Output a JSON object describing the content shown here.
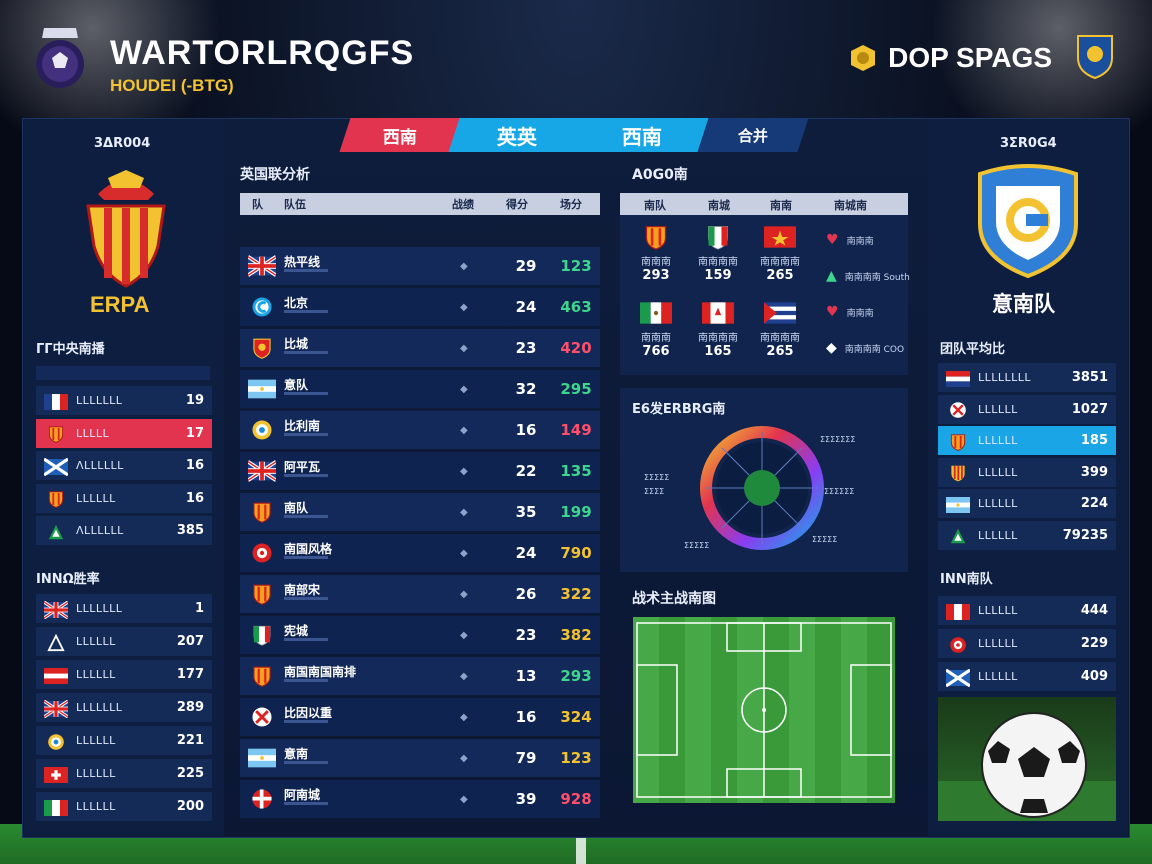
{
  "header": {
    "title": "WARTORLRQGFS",
    "subtitle": "HOUDEI (-BTG)",
    "right_label": "DOP SPAGS"
  },
  "tabs": [
    {
      "label": "西南"
    },
    {
      "label_a": "英英",
      "label_b": "西南"
    },
    {
      "label": "合并"
    }
  ],
  "left_panel": {
    "code": "3ΔR004",
    "team_name": "ERPA",
    "section1_title": "ΓΓ中央南播",
    "section1_rows": [
      {
        "name": "LLLLLLL",
        "val": "19",
        "flag": "flag-france"
      },
      {
        "name": "LLLLL",
        "val": "17",
        "flag": "flag-shield-orange",
        "highlight": "red"
      },
      {
        "name": "ΛLLLLLL",
        "val": "16",
        "flag": "flag-scotland"
      },
      {
        "name": "LLLLLL",
        "val": "16",
        "flag": "flag-shield-orange"
      },
      {
        "name": "ΛLLLLLL",
        "val": "385",
        "flag": "flag-green-triangle"
      }
    ],
    "section2_title": "INNΩ胜率",
    "section2_rows": [
      {
        "name": "LLLLLLL",
        "val": "1",
        "flag": "flag-uk"
      },
      {
        "name": "LLLLLL",
        "val": "207",
        "flag": "flag-triangle-white"
      },
      {
        "name": "LLLLLL",
        "val": "177",
        "flag": "flag-austria"
      },
      {
        "name": "LLLLLLL",
        "val": "289",
        "flag": "flag-uk"
      },
      {
        "name": "LLLLLL",
        "val": "221",
        "flag": "flag-round-yellow"
      },
      {
        "name": "LLLLLL",
        "val": "225",
        "flag": "flag-swiss"
      },
      {
        "name": "LLLLLL",
        "val": "200",
        "flag": "flag-italy"
      }
    ]
  },
  "standings": {
    "title": "英国联分析",
    "headers": [
      "队",
      "队伍",
      "战绩",
      "得分",
      "场分"
    ],
    "rows": [
      {
        "team": "热平线",
        "num": "29",
        "score": "123",
        "score_color": "#3dd68c",
        "flag": "flag-uk"
      },
      {
        "team": "北京",
        "num": "24",
        "score": "463",
        "score_color": "#3dd68c",
        "flag": "flag-c-blue"
      },
      {
        "team": "比城",
        "num": "23",
        "score": "420",
        "score_color": "#ff4f6a",
        "flag": "flag-shield-red"
      },
      {
        "team": "意队",
        "num": "32",
        "score": "295",
        "score_color": "#3dd68c",
        "flag": "flag-argentina"
      },
      {
        "team": "比利南",
        "num": "16",
        "score": "149",
        "score_color": "#ff4f6a",
        "flag": "flag-round-yellow"
      },
      {
        "team": "阿平瓦",
        "num": "22",
        "score": "135",
        "score_color": "#3dd68c",
        "flag": "flag-uk"
      },
      {
        "team": "南队",
        "num": "35",
        "score": "199",
        "score_color": "#3dd68c",
        "flag": "flag-shield-orange"
      },
      {
        "team": "南国风格",
        "num": "24",
        "score": "790",
        "score_color": "#f2c230",
        "flag": "flag-round-red"
      },
      {
        "team": "南部宋",
        "num": "26",
        "score": "322",
        "score_color": "#f2c230",
        "flag": "flag-shield-orange"
      },
      {
        "team": "宪城",
        "num": "23",
        "score": "382",
        "score_color": "#f2c230",
        "flag": "flag-shield-italy"
      },
      {
        "team": "南国南国南排",
        "num": "13",
        "score": "293",
        "score_color": "#3dd68c",
        "flag": "flag-shield-orange"
      },
      {
        "team": "比因以重",
        "num": "16",
        "score": "324",
        "score_color": "#f2c230",
        "flag": "flag-round-scotland"
      },
      {
        "team": "意南",
        "num": "79",
        "score": "123",
        "score_color": "#f2c230",
        "flag": "flag-argentina"
      },
      {
        "team": "阿南城",
        "num": "39",
        "score": "928",
        "score_color": "#ff4f6a",
        "flag": "flag-round-denmark"
      }
    ]
  },
  "matrix": {
    "title": "A0G0南",
    "headers": [
      "南队",
      "南城",
      "南南",
      "南城南"
    ],
    "cells": [
      {
        "cap": "南南南",
        "v": "293",
        "flag": "flag-shield-orange"
      },
      {
        "cap": "南南南南",
        "v": "159",
        "flag": "flag-shield-italy"
      },
      {
        "cap": "南南南南",
        "v": "265",
        "flag": "flag-vietnam"
      },
      {
        "cap": "南南南",
        "v": "766",
        "flag": "flag-mexico"
      },
      {
        "cap": "南南南南",
        "v": "165",
        "flag": "flag-canada"
      },
      {
        "cap": "南南南南",
        "v": "265",
        "flag": "flag-cuba"
      }
    ],
    "side": [
      {
        "text": "南南南",
        "icon": "heart-icon"
      },
      {
        "text": "南南南南 South",
        "icon": "triangle-icon"
      },
      {
        "text": "南南南",
        "icon": "heart-icon"
      },
      {
        "text": "南南南南 COO",
        "icon": "diamond-icon"
      }
    ]
  },
  "wheel": {
    "title": "E6发ERBRG南",
    "labels": [
      "ΣΣΣΣΣΣΣ",
      "ΣΣΣΣΣΣ",
      "ΣΣΣΣΣ",
      "ΣΣΣΣΣ",
      "ΣΣΣΣ",
      "ΣΣΣΣΣ"
    ]
  },
  "pitch_section": {
    "title": "战术主战南图"
  },
  "right_panel": {
    "code": "3ΣR0G4",
    "team_name": "意南队",
    "section1_title": "团队平均比",
    "section1_rows": [
      {
        "name": "LLLLLLLL",
        "val": "3851",
        "flag": "flag-netherlands"
      },
      {
        "name": "LLLLLL",
        "val": "1027",
        "flag": "flag-round-scotland"
      },
      {
        "name": "LLLLLL",
        "val": "185",
        "flag": "flag-shield-orange",
        "highlight": "blue"
      },
      {
        "name": "LLLLLL",
        "val": "399",
        "flag": "flag-shield-catalonia"
      },
      {
        "name": "LLLLLL",
        "val": "224",
        "flag": "flag-argentina"
      },
      {
        "name": "LLLLLL",
        "val": "79235",
        "flag": "flag-green-triangle"
      }
    ],
    "section2_title": "INN南队",
    "section2_rows": [
      {
        "name": "LLLLLL",
        "val": "444",
        "flag": "flag-peru"
      },
      {
        "name": "LLLLLL",
        "val": "229",
        "flag": "flag-round-red"
      },
      {
        "name": "LLLLLL",
        "val": "409",
        "flag": "flag-scotland"
      }
    ]
  },
  "colors": {
    "accent_red": "#e3344f",
    "accent_blue": "#18a7e6",
    "panel": "#0f2147",
    "gold": "#f2c230"
  }
}
